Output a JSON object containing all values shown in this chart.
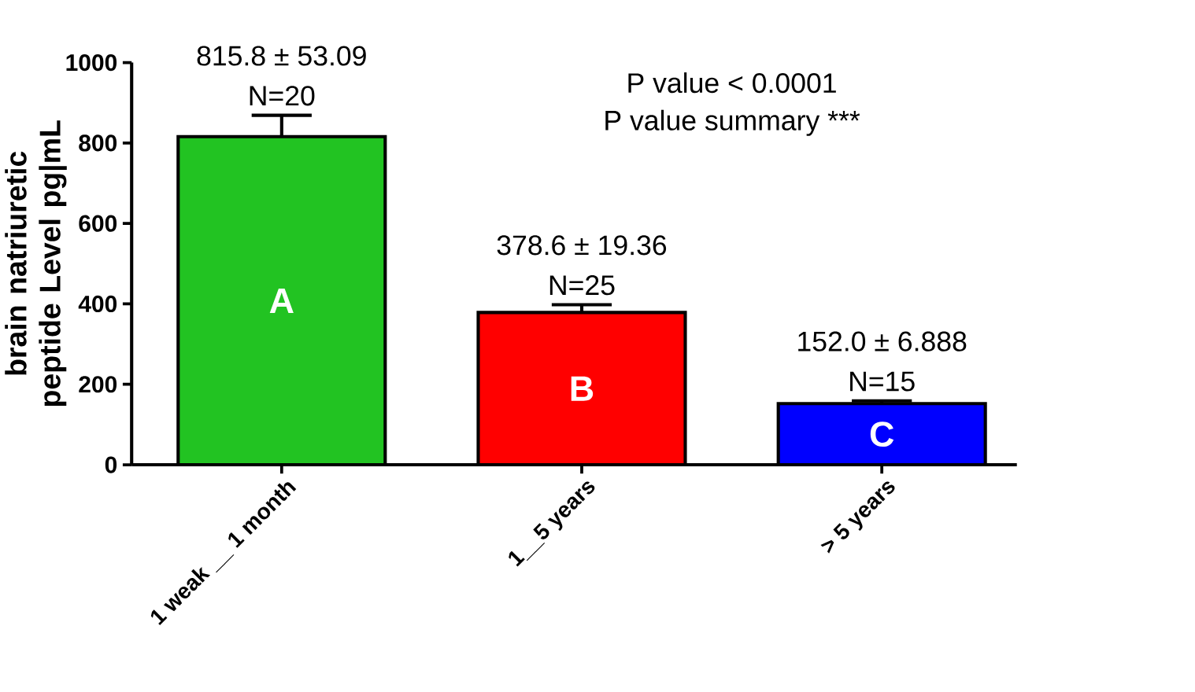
{
  "chart_data": {
    "type": "bar",
    "ylabel": "brain natriuretic peptide Level pg|mL",
    "categories": [
      "1 weak __ 1 month",
      "1__5 years",
      "> 5 years"
    ],
    "values": [
      815.8,
      378.6,
      152.0
    ],
    "colors": [
      "#22c322",
      "#ff0000",
      "#0000ff"
    ],
    "errors": [
      [
        815.8,
        868.89
      ],
      [
        378.6,
        397.96
      ],
      [
        152.0,
        158.888
      ]
    ],
    "value_labels": [
      "815.8 ± 53.09",
      "378.6 ± 19.36",
      "152.0 ± 6.888"
    ],
    "ylim": [
      0,
      1000
    ],
    "yticks": [
      0,
      200,
      400,
      600,
      800,
      1000
    ],
    "annotations": [
      {
        "text": "N=20",
        "x": "1 weak __ 1 month",
        "y": 868.89
      },
      {
        "text": "N=25",
        "x": "1__5 years",
        "y": 397.96
      },
      {
        "text": "N=15",
        "x": "> 5 years",
        "y": 158.888
      },
      "A",
      "B",
      "C",
      "P value < 0.0001",
      "P value summary ***"
    ]
  }
}
